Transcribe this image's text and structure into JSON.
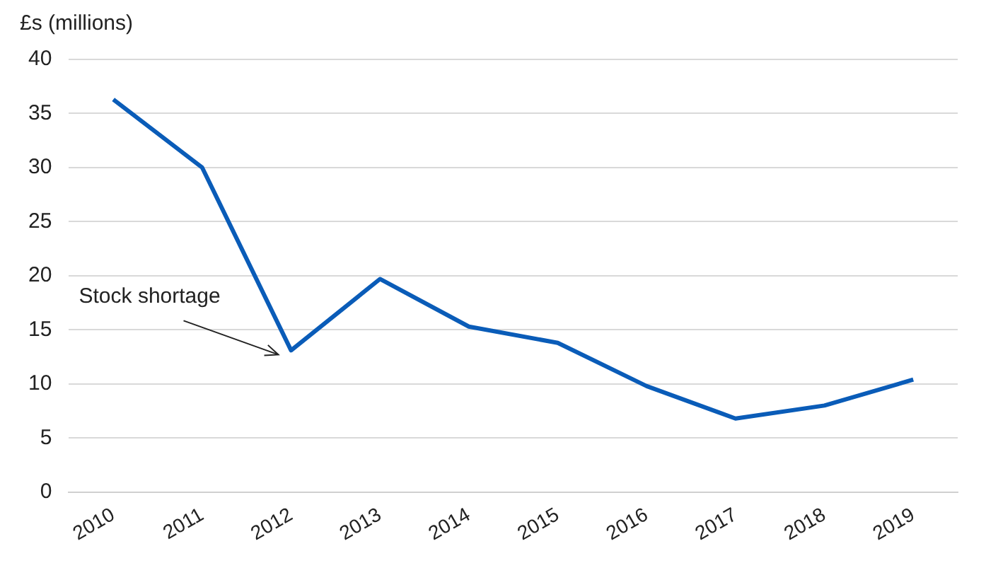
{
  "chart_data": {
    "type": "line",
    "ylabel": "£s (millions)",
    "categories": [
      "2010",
      "2011",
      "2012",
      "2013",
      "2014",
      "2015",
      "2016",
      "2017",
      "2018",
      "2019"
    ],
    "series": [
      {
        "color": "#0a5cb8",
        "values": [
          36.3,
          30,
          13.1,
          19.7,
          15.3,
          13.8,
          9.8,
          6.8,
          8,
          10.4
        ]
      }
    ],
    "ylim": [
      0,
      40
    ],
    "yticks": [
      0,
      5,
      10,
      15,
      20,
      25,
      30,
      35,
      40
    ],
    "grid": "y",
    "legend": false,
    "marker": "none",
    "line_style": "solid",
    "annotations": [
      {
        "text": "Stock shortage",
        "x": "2012",
        "y": 13.1
      }
    ]
  }
}
